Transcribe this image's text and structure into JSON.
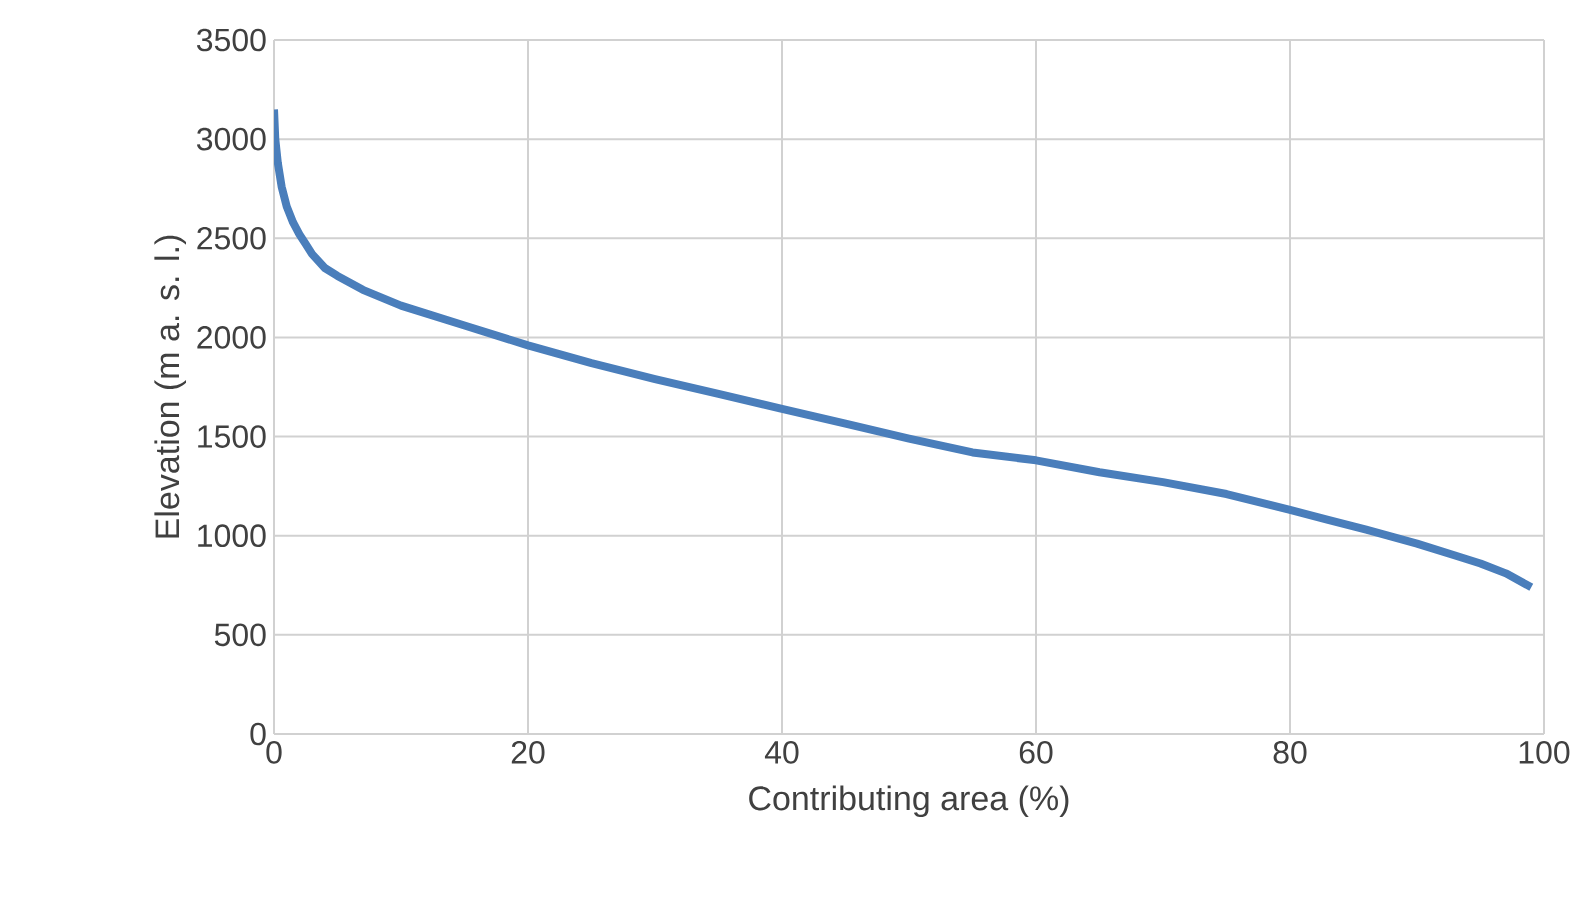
{
  "chart_data": {
    "type": "line",
    "xlabel": "Contributing area (%)",
    "ylabel": "Elevation (m a. s. l.)",
    "xlim": [
      0,
      100
    ],
    "xticks": [
      0,
      20,
      40,
      60,
      80,
      100
    ],
    "ylim": [
      0,
      3500
    ],
    "yticks": [
      0,
      500,
      1000,
      1500,
      2000,
      2500,
      3000,
      3500
    ],
    "grid": true,
    "marker": "none",
    "line_style": "solid",
    "series": [
      {
        "color": "#4a7ebb",
        "x": [
          0,
          0.1,
          0.3,
          0.6,
          1,
          1.5,
          2,
          2.5,
          3,
          4,
          5,
          7,
          10,
          15,
          20,
          25,
          30,
          35,
          40,
          45,
          50,
          55,
          60,
          65,
          70,
          75,
          80,
          83,
          86,
          90,
          93,
          95,
          97,
          99
        ],
        "values": [
          3150,
          3000,
          2880,
          2760,
          2660,
          2580,
          2520,
          2470,
          2420,
          2350,
          2310,
          2240,
          2160,
          2060,
          1960,
          1870,
          1790,
          1715,
          1640,
          1565,
          1490,
          1420,
          1380,
          1320,
          1270,
          1210,
          1130,
          1080,
          1030,
          960,
          900,
          860,
          810,
          740
        ]
      }
    ]
  }
}
